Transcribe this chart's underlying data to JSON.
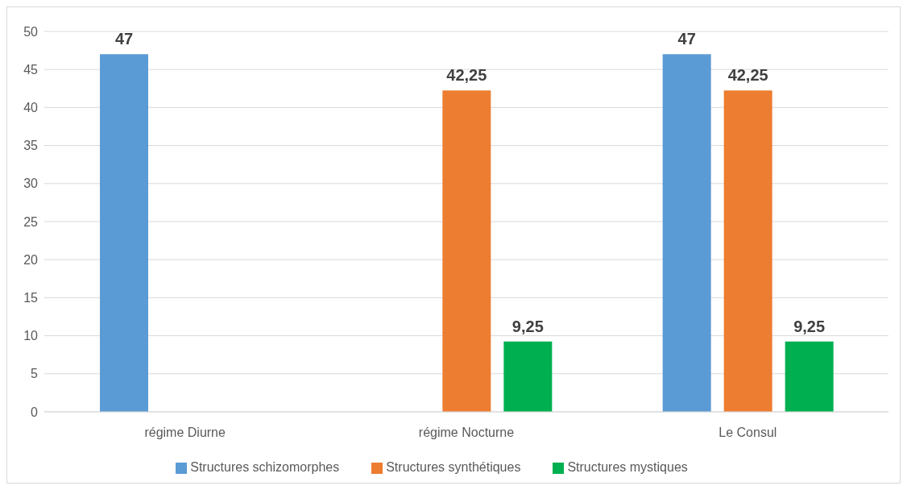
{
  "chart_data": {
    "type": "bar",
    "categories": [
      "régime Diurne",
      "régime Nocturne",
      "Le Consul"
    ],
    "series": [
      {
        "name": "Structures schizomorphes",
        "color": "#5b9bd5",
        "values": [
          47,
          null,
          47
        ],
        "value_labels": [
          "47",
          null,
          "47"
        ]
      },
      {
        "name": "Structures synthétiques",
        "color": "#ed7d31",
        "values": [
          null,
          42.25,
          42.25
        ],
        "value_labels": [
          null,
          "42,25",
          "42,25"
        ]
      },
      {
        "name": "Structures mystiques",
        "color": "#00b050",
        "values": [
          null,
          9.25,
          9.25
        ],
        "value_labels": [
          null,
          "9,25",
          "9,25"
        ]
      }
    ],
    "ylim": [
      0,
      50
    ],
    "yticks": [
      0,
      5,
      10,
      15,
      20,
      25,
      30,
      35,
      40,
      45,
      50
    ],
    "grid": "y",
    "legend": "bottom"
  }
}
